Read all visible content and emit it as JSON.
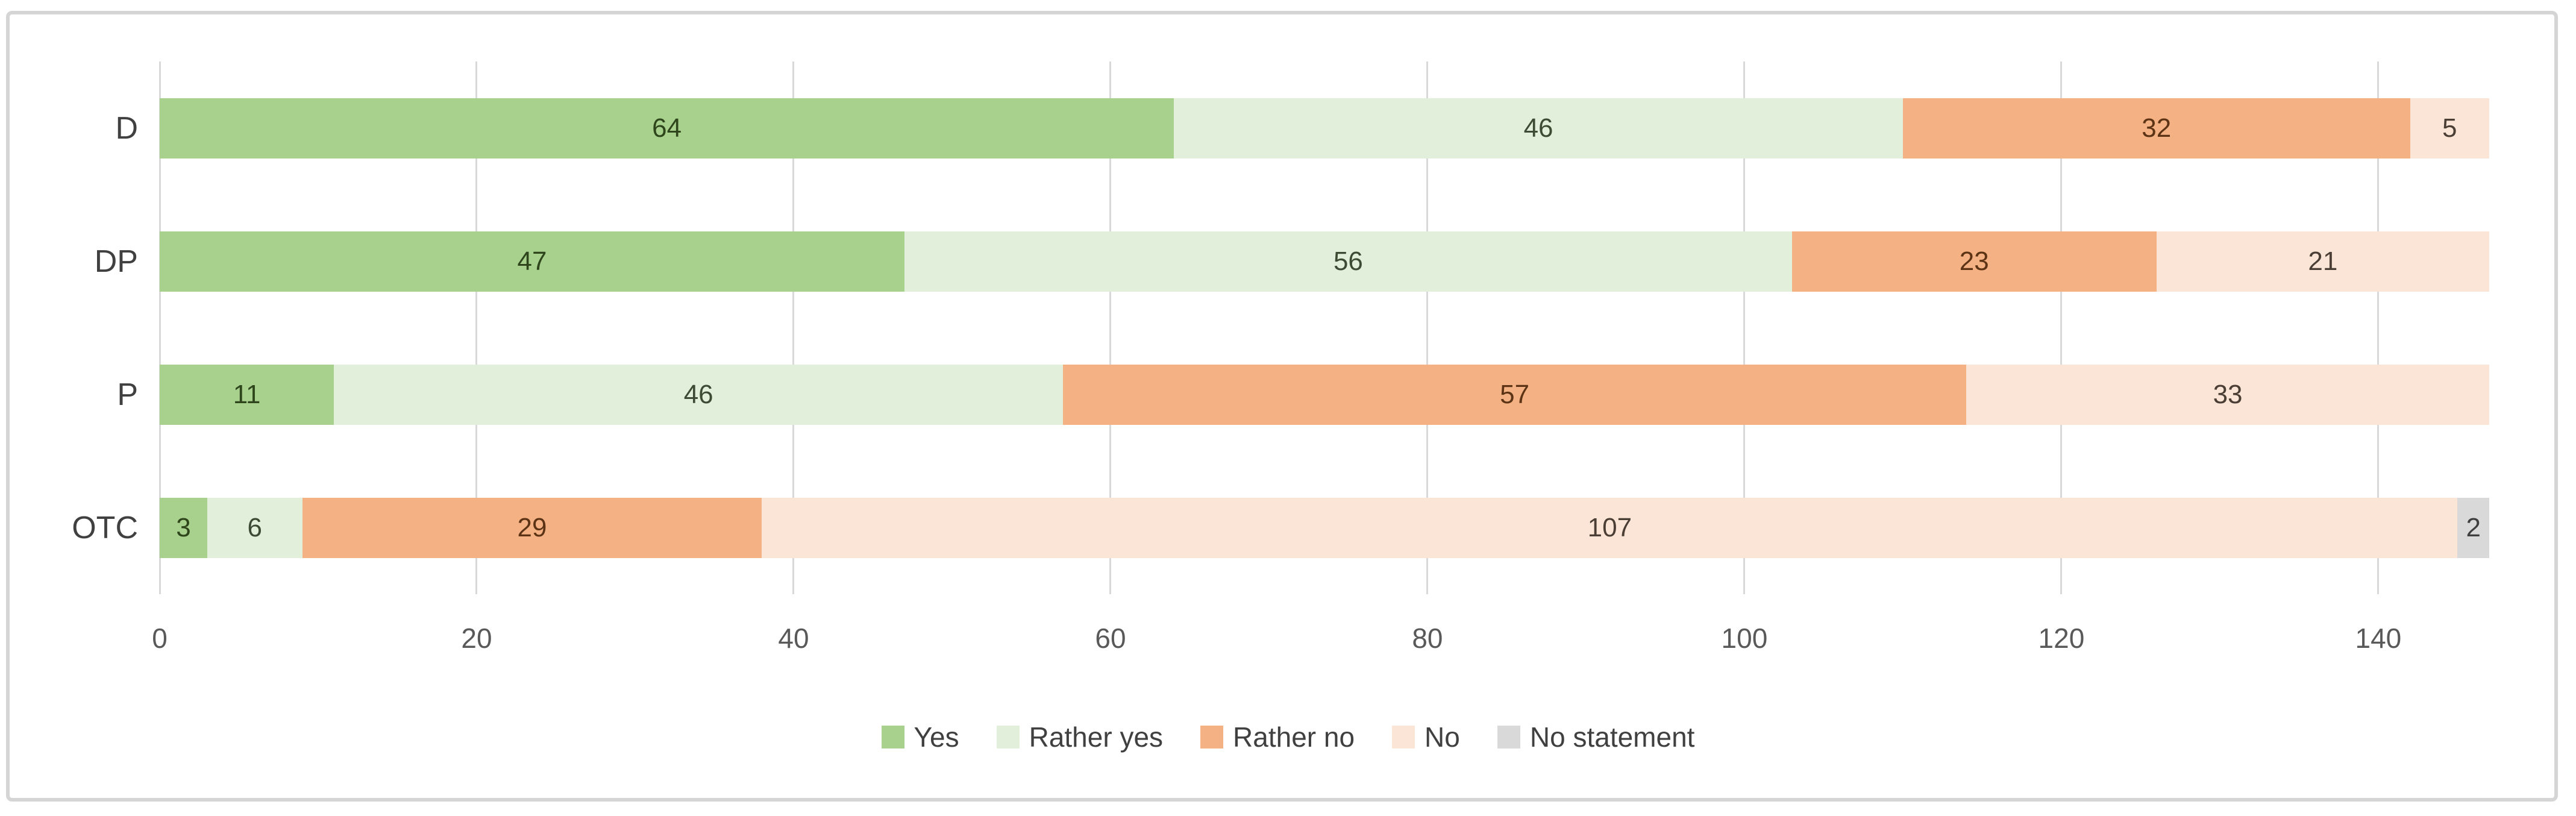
{
  "figure": {
    "background": "#ffffff",
    "frame_border_color": "#d5d5d5"
  },
  "chart_data": {
    "type": "bar",
    "orientation": "horizontal",
    "stacked": true,
    "title": "",
    "xlabel": "",
    "ylabel": "",
    "categories": [
      "D",
      "DP",
      "P",
      "OTC"
    ],
    "series": [
      {
        "name": "Yes",
        "color": "#a9d18e",
        "label_color": "#2f461c",
        "values": [
          64,
          47,
          11,
          3
        ]
      },
      {
        "name": "Rather yes",
        "color": "#e2efda",
        "label_color": "#3c4b33",
        "values": [
          46,
          56,
          46,
          6
        ]
      },
      {
        "name": "Rather no",
        "color": "#f4b183",
        "label_color": "#5c3315",
        "values": [
          32,
          23,
          57,
          29
        ]
      },
      {
        "name": "No",
        "color": "#fbe5d6",
        "label_color": "#4a3e35",
        "values": [
          5,
          21,
          33,
          107
        ]
      },
      {
        "name": "No statement",
        "color": "#d9d9d9",
        "label_color": "#3f3f3f",
        "values": [
          0,
          0,
          0,
          2
        ]
      }
    ],
    "row_totals": [
      147,
      147,
      147,
      147
    ],
    "xlim": [
      0,
      147
    ],
    "x_ticks": [
      "0",
      "20",
      "40",
      "60",
      "80",
      "100",
      "120",
      "140"
    ],
    "grid": true,
    "gridline_color": "#d9d9d9",
    "tick_label_color": "#595959",
    "category_label_color": "#404040",
    "legend_position": "bottom",
    "legend_text_color": "#404040"
  }
}
